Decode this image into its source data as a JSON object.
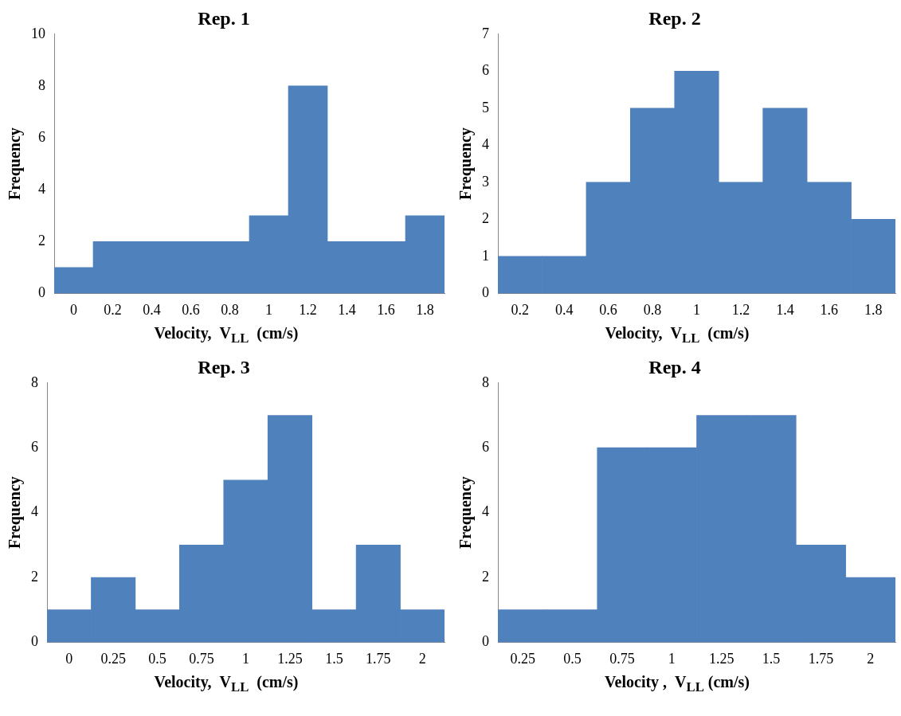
{
  "chart_data": [
    {
      "type": "bar",
      "title": "Rep. 1",
      "xlabel": "Velocity,  V$_{LL}$  (cm/s)",
      "ylabel": "Frequency",
      "categories": [
        "0",
        "0.2",
        "0.4",
        "0.6",
        "0.8",
        "1",
        "1.2",
        "1.4",
        "1.6",
        "1.8"
      ],
      "values": [
        1,
        2,
        2,
        2,
        2,
        3,
        8,
        2,
        2,
        3
      ],
      "color": "#4f81bd",
      "ylim": [
        0,
        10
      ],
      "yticks": [
        0,
        2,
        4,
        6,
        8,
        10
      ]
    },
    {
      "type": "bar",
      "title": "Rep. 2",
      "xlabel": "Velocity,  V$_{LL}$  (cm/s)",
      "ylabel": "Frequency",
      "categories": [
        "0.2",
        "0.4",
        "0.6",
        "0.8",
        "1",
        "1.2",
        "1.4",
        "1.6",
        "1.8"
      ],
      "values": [
        1,
        1,
        3,
        5,
        6,
        3,
        5,
        3,
        2
      ],
      "color": "#4f81bd",
      "ylim": [
        0,
        7
      ],
      "yticks": [
        0,
        1,
        2,
        3,
        4,
        5,
        6,
        7
      ]
    },
    {
      "type": "bar",
      "title": "Rep. 3",
      "xlabel": "Velocity,  V$_{LL}$  (cm/s)",
      "ylabel": "Frequency",
      "categories": [
        "0",
        "0.25",
        "0.5",
        "0.75",
        "1",
        "1.25",
        "1.5",
        "1.75",
        "2"
      ],
      "values": [
        1,
        2,
        1,
        3,
        5,
        7,
        1,
        3,
        1
      ],
      "color": "#4f81bd",
      "ylim": [
        0,
        8
      ],
      "yticks": [
        0,
        2,
        4,
        6,
        8
      ]
    },
    {
      "type": "bar",
      "title": "Rep. 4",
      "xlabel": "Velocity ,  V$_{LL}$ (cm/s)",
      "ylabel": "Frequency",
      "categories": [
        "0.25",
        "0.5",
        "0.75",
        "1",
        "1.25",
        "1.5",
        "1.75",
        "2"
      ],
      "values": [
        1,
        1,
        6,
        6,
        7,
        7,
        3,
        2
      ],
      "color": "#4f81bd",
      "ylim": [
        0,
        8
      ],
      "yticks": [
        0,
        2,
        4,
        6,
        8
      ]
    }
  ]
}
